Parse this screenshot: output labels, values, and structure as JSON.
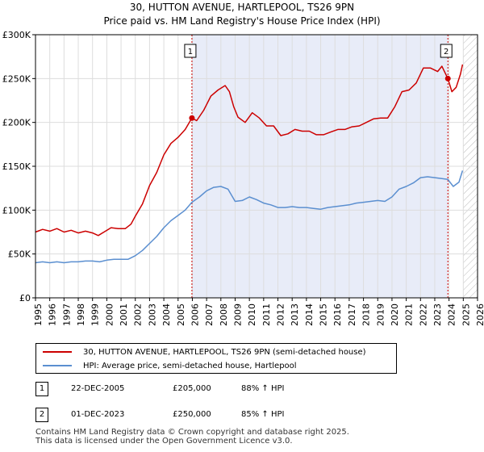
{
  "title_line1": "30, HUTTON AVENUE, HARTLEPOOL, TS26 9PN",
  "title_line2": "Price paid vs. HM Land Registry's House Price Index (HPI)",
  "chart_data": {
    "type": "line",
    "xlim": [
      1995,
      2026
    ],
    "ylim": [
      0,
      300000
    ],
    "x_ticks": [
      "1995",
      "1996",
      "1997",
      "1998",
      "1999",
      "2000",
      "2001",
      "2002",
      "2003",
      "2004",
      "2005",
      "2006",
      "2007",
      "2008",
      "2009",
      "2010",
      "2011",
      "2012",
      "2013",
      "2014",
      "2015",
      "2016",
      "2017",
      "2018",
      "2019",
      "2020",
      "2021",
      "2022",
      "2023",
      "2024",
      "2025",
      "2026"
    ],
    "y_ticks": [
      {
        "value": 0,
        "label": "£0"
      },
      {
        "value": 50000,
        "label": "£50K"
      },
      {
        "value": 100000,
        "label": "£100K"
      },
      {
        "value": 150000,
        "label": "£150K"
      },
      {
        "value": 200000,
        "label": "£200K"
      },
      {
        "value": 250000,
        "label": "£250K"
      },
      {
        "value": 300000,
        "label": "£300K"
      }
    ],
    "grid": true,
    "shaded_span": [
      2005.97,
      2023.92
    ],
    "hatched_after": 2025.0,
    "series": [
      {
        "name": "30, HUTTON AVENUE, HARTLEPOOL, TS26 9PN (semi-detached house)",
        "color": "#cc0000",
        "points": [
          [
            1995.0,
            75000
          ],
          [
            1995.5,
            78000
          ],
          [
            1996.0,
            76000
          ],
          [
            1996.5,
            79000
          ],
          [
            1997.0,
            75000
          ],
          [
            1997.5,
            77000
          ],
          [
            1998.0,
            74000
          ],
          [
            1998.5,
            76000
          ],
          [
            1999.0,
            74000
          ],
          [
            1999.4,
            71000
          ],
          [
            1999.8,
            75000
          ],
          [
            2000.3,
            80000
          ],
          [
            2000.8,
            79000
          ],
          [
            2001.3,
            79000
          ],
          [
            2001.7,
            84000
          ],
          [
            2002.0,
            93000
          ],
          [
            2002.5,
            107000
          ],
          [
            2003.0,
            128000
          ],
          [
            2003.5,
            143000
          ],
          [
            2004.0,
            163000
          ],
          [
            2004.5,
            176000
          ],
          [
            2005.0,
            183000
          ],
          [
            2005.5,
            192000
          ],
          [
            2005.97,
            205000
          ],
          [
            2006.3,
            202000
          ],
          [
            2006.8,
            214000
          ],
          [
            2007.3,
            230000
          ],
          [
            2007.8,
            237000
          ],
          [
            2008.3,
            242000
          ],
          [
            2008.6,
            235000
          ],
          [
            2008.9,
            218000
          ],
          [
            2009.2,
            206000
          ],
          [
            2009.7,
            200000
          ],
          [
            2010.2,
            211000
          ],
          [
            2010.7,
            205000
          ],
          [
            2011.2,
            196000
          ],
          [
            2011.7,
            196000
          ],
          [
            2012.2,
            185000
          ],
          [
            2012.7,
            187000
          ],
          [
            2013.2,
            192000
          ],
          [
            2013.7,
            190000
          ],
          [
            2014.2,
            190000
          ],
          [
            2014.7,
            186000
          ],
          [
            2015.2,
            186000
          ],
          [
            2015.7,
            189000
          ],
          [
            2016.2,
            192000
          ],
          [
            2016.7,
            192000
          ],
          [
            2017.2,
            195000
          ],
          [
            2017.7,
            196000
          ],
          [
            2018.2,
            200000
          ],
          [
            2018.7,
            204000
          ],
          [
            2019.2,
            205000
          ],
          [
            2019.7,
            205000
          ],
          [
            2020.2,
            218000
          ],
          [
            2020.7,
            235000
          ],
          [
            2021.2,
            237000
          ],
          [
            2021.7,
            245000
          ],
          [
            2022.2,
            262000
          ],
          [
            2022.7,
            262000
          ],
          [
            2023.2,
            258000
          ],
          [
            2023.5,
            264000
          ],
          [
            2023.92,
            250000
          ],
          [
            2024.2,
            235000
          ],
          [
            2024.5,
            240000
          ],
          [
            2024.8,
            255000
          ],
          [
            2024.95,
            266000
          ]
        ]
      },
      {
        "name": "HPI: Average price, semi-detached house, Hartlepool",
        "color": "#5b8fd0",
        "points": [
          [
            1995.0,
            40000
          ],
          [
            1995.5,
            41000
          ],
          [
            1996.0,
            40000
          ],
          [
            1996.5,
            41000
          ],
          [
            1997.0,
            40000
          ],
          [
            1997.5,
            41000
          ],
          [
            1998.0,
            41000
          ],
          [
            1998.5,
            42000
          ],
          [
            1999.0,
            42000
          ],
          [
            1999.5,
            41000
          ],
          [
            2000.0,
            43000
          ],
          [
            2000.5,
            44000
          ],
          [
            2001.0,
            44000
          ],
          [
            2001.5,
            44000
          ],
          [
            2002.0,
            48000
          ],
          [
            2002.5,
            54000
          ],
          [
            2003.0,
            62000
          ],
          [
            2003.5,
            70000
          ],
          [
            2004.0,
            80000
          ],
          [
            2004.5,
            88000
          ],
          [
            2005.0,
            94000
          ],
          [
            2005.5,
            100000
          ],
          [
            2005.97,
            109000
          ],
          [
            2006.5,
            115000
          ],
          [
            2007.0,
            122000
          ],
          [
            2007.5,
            126000
          ],
          [
            2008.0,
            127000
          ],
          [
            2008.5,
            124000
          ],
          [
            2009.0,
            110000
          ],
          [
            2009.5,
            111000
          ],
          [
            2010.0,
            115000
          ],
          [
            2010.5,
            112000
          ],
          [
            2011.0,
            108000
          ],
          [
            2011.5,
            106000
          ],
          [
            2012.0,
            103000
          ],
          [
            2012.5,
            103000
          ],
          [
            2013.0,
            104000
          ],
          [
            2013.5,
            103000
          ],
          [
            2014.0,
            103000
          ],
          [
            2014.5,
            102000
          ],
          [
            2015.0,
            101000
          ],
          [
            2015.5,
            103000
          ],
          [
            2016.0,
            104000
          ],
          [
            2016.5,
            105000
          ],
          [
            2017.0,
            106000
          ],
          [
            2017.5,
            108000
          ],
          [
            2018.0,
            109000
          ],
          [
            2018.5,
            110000
          ],
          [
            2019.0,
            111000
          ],
          [
            2019.5,
            110000
          ],
          [
            2020.0,
            115000
          ],
          [
            2020.5,
            124000
          ],
          [
            2021.0,
            127000
          ],
          [
            2021.5,
            131000
          ],
          [
            2022.0,
            137000
          ],
          [
            2022.5,
            138000
          ],
          [
            2023.0,
            137000
          ],
          [
            2023.5,
            136000
          ],
          [
            2023.92,
            135000
          ],
          [
            2024.3,
            127000
          ],
          [
            2024.7,
            132000
          ],
          [
            2024.95,
            145000
          ]
        ]
      }
    ],
    "markers": [
      {
        "label": "1",
        "x": 2005.97,
        "y": 205000
      },
      {
        "label": "2",
        "x": 2023.92,
        "y": 250000
      }
    ]
  },
  "legend": {
    "items": [
      {
        "label": "30, HUTTON AVENUE, HARTLEPOOL, TS26 9PN (semi-detached house)",
        "color": "#cc0000"
      },
      {
        "label": "HPI: Average price, semi-detached house, Hartlepool",
        "color": "#5b8fd0"
      }
    ]
  },
  "transactions": [
    {
      "num": "1",
      "date": "22-DEC-2005",
      "price": "£205,000",
      "hpi": "88% ↑ HPI"
    },
    {
      "num": "2",
      "date": "01-DEC-2023",
      "price": "£250,000",
      "hpi": "85% ↑ HPI"
    }
  ],
  "footer": {
    "line1": "Contains HM Land Registry data © Crown copyright and database right 2025.",
    "line2": "This data is licensed under the Open Government Licence v3.0."
  }
}
